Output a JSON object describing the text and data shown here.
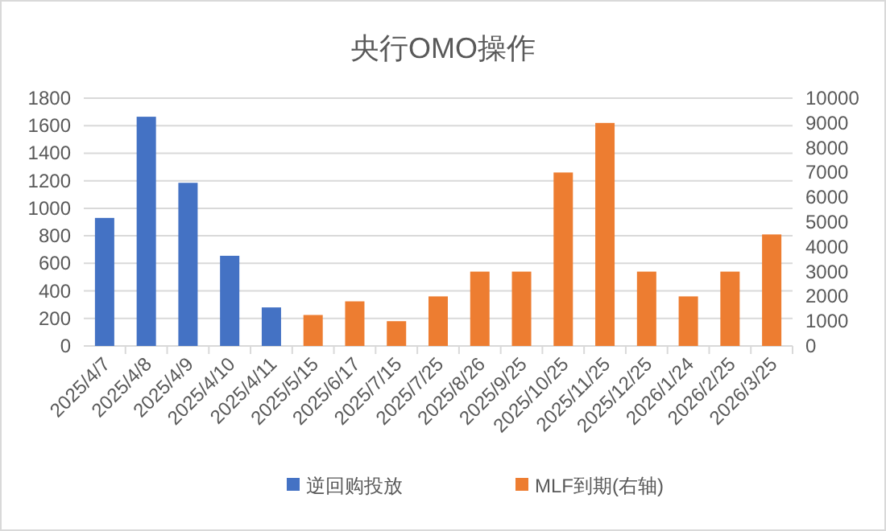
{
  "chart_data": {
    "type": "bar",
    "title": "央行OMO操作",
    "categories": [
      "2025/4/7",
      "2025/4/8",
      "2025/4/9",
      "2025/4/10",
      "2025/4/11",
      "2025/5/15",
      "2025/6/17",
      "2025/7/15",
      "2025/7/25",
      "2025/8/26",
      "2025/9/25",
      "2025/10/25",
      "2025/11/25",
      "2025/12/25",
      "2026/1/24",
      "2026/2/25",
      "2026/3/25"
    ],
    "series": [
      {
        "name": "逆回购投放",
        "color": "#4472c4",
        "values": [
          930,
          1665,
          1185,
          655,
          280,
          null,
          null,
          null,
          null,
          null,
          null,
          null,
          null,
          null,
          null,
          null,
          null
        ]
      },
      {
        "name": "MLF到期(右轴)",
        "color": "#ed7d31",
        "axis": "y2",
        "values": [
          null,
          null,
          null,
          null,
          null,
          1250,
          1800,
          1000,
          2000,
          3000,
          3000,
          7000,
          9000,
          3000,
          2000,
          3000,
          4500
        ]
      }
    ],
    "ylim": [
      0,
      1800
    ],
    "yticks": [
      0,
      200,
      400,
      600,
      800,
      1000,
      1200,
      1400,
      1600,
      1800
    ],
    "y2lim": [
      0,
      10000
    ],
    "y2ticks": [
      0,
      1000,
      2000,
      3000,
      4000,
      5000,
      6000,
      7000,
      8000,
      9000,
      10000
    ],
    "grid": "y",
    "legend": "bottom"
  }
}
